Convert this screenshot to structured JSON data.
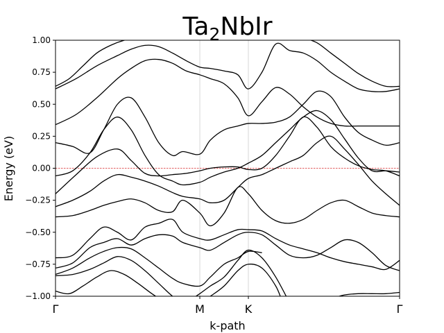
{
  "chart_data": {
    "type": "line",
    "title": "Ta",
    "title_subscript": "2",
    "title_rest": "NbIr",
    "xlabel": "k-path",
    "ylabel": "Energy (eV)",
    "ylim": [
      -1.0,
      1.0
    ],
    "yticks": [
      "1.00",
      "0.75",
      "0.50",
      "0.25",
      "0.00",
      "−0.25",
      "−0.50",
      "−0.75",
      "−1.00"
    ],
    "ytick_values": [
      1.0,
      0.75,
      0.5,
      0.25,
      0.0,
      -0.25,
      -0.5,
      -0.75,
      -1.0
    ],
    "xlim": [
      0,
      1
    ],
    "kpoints": [
      {
        "label": "Γ",
        "x": 0.0
      },
      {
        "label": "M",
        "x": 0.4194
      },
      {
        "label": "K",
        "x": 0.5605
      },
      {
        "label": "Γ",
        "x": 1.0
      }
    ],
    "fermi_level": 0.0,
    "fermi_color": "#d62728",
    "line_color": "#000000",
    "grid": "vertical lines at high-symmetry points",
    "series": [
      {
        "x": [
          0,
          0.06,
          0.12,
          0.18,
          0.22,
          0.26,
          0.3,
          0.34,
          0.38,
          0.4194,
          0.45,
          0.49,
          0.53,
          0.5605,
          0.6,
          0.64,
          0.68,
          0.72,
          0.76,
          0.8,
          0.84,
          0.88,
          0.92,
          0.96,
          1.0
        ],
        "y": [
          -0.2,
          -0.05,
          0.09,
          0.15,
          0.06,
          -0.04,
          -0.06,
          -0.05,
          -0.04,
          -0.02,
          0.0,
          0.01,
          0.01,
          -0.01,
          0.0,
          0.1,
          0.25,
          0.4,
          0.32,
          0.17,
          0.08,
          0.02,
          -0.01,
          -0.02,
          -0.06
        ]
      },
      {
        "x": [
          0,
          0.05,
          0.1,
          0.14,
          0.18,
          0.22,
          0.26,
          0.3,
          0.34,
          0.37,
          0.4194,
          0.45,
          0.49,
          0.53,
          0.5605,
          0.6,
          0.64,
          0.68,
          0.72,
          0.76,
          0.8,
          0.84,
          0.88,
          0.92,
          0.96,
          1.0
        ],
        "y": [
          -0.06,
          -0.02,
          0.12,
          0.3,
          0.4,
          0.3,
          0.1,
          -0.05,
          -0.1,
          -0.13,
          -0.11,
          -0.07,
          -0.03,
          0.0,
          0.04,
          0.1,
          0.2,
          0.3,
          0.4,
          0.45,
          0.38,
          0.23,
          0.08,
          -0.02,
          -0.02,
          -0.03
        ]
      },
      {
        "x": [
          0,
          0.05,
          0.1,
          0.14,
          0.18,
          0.22,
          0.26,
          0.3,
          0.34,
          0.37,
          0.4194,
          0.45,
          0.49,
          0.53,
          0.5605,
          0.6,
          0.64,
          0.68,
          0.72,
          0.76,
          0.8,
          0.84,
          0.88,
          0.92,
          0.96,
          1.0
        ],
        "y": [
          0.2,
          0.17,
          0.12,
          0.3,
          0.5,
          0.55,
          0.4,
          0.2,
          0.1,
          0.13,
          0.11,
          0.22,
          0.3,
          0.33,
          0.35,
          0.35,
          0.36,
          0.4,
          0.5,
          0.6,
          0.56,
          0.4,
          0.28,
          0.22,
          0.18,
          0.2
        ]
      },
      {
        "x": [
          0,
          0.06,
          0.12,
          0.18,
          0.22,
          0.26,
          0.3,
          0.34,
          0.38,
          0.4194,
          0.45,
          0.49,
          0.53,
          0.5605,
          0.6,
          0.64,
          0.68,
          0.72,
          0.76,
          0.8,
          0.84,
          0.88,
          0.92,
          0.96,
          1.0
        ],
        "y": [
          0.34,
          0.42,
          0.55,
          0.7,
          0.78,
          0.84,
          0.85,
          0.82,
          0.76,
          0.73,
          0.7,
          0.66,
          0.55,
          0.41,
          0.52,
          0.63,
          0.58,
          0.48,
          0.4,
          0.35,
          0.33,
          0.33,
          0.33,
          0.33,
          0.33
        ]
      },
      {
        "x": [
          0,
          0.06,
          0.12,
          0.18,
          0.22,
          0.26,
          0.3,
          0.34,
          0.38,
          0.4194,
          0.45,
          0.49,
          0.53,
          0.5605,
          0.6,
          0.64,
          0.68,
          0.72,
          0.76,
          0.8,
          0.84,
          0.88,
          0.92,
          0.96,
          1.0
        ],
        "y": [
          0.62,
          0.7,
          0.8,
          0.88,
          0.93,
          0.96,
          0.95,
          0.9,
          0.84,
          0.79,
          0.78,
          0.76,
          0.73,
          0.62,
          0.75,
          0.97,
          0.92,
          0.9,
          0.84,
          0.75,
          0.68,
          0.62,
          0.6,
          0.6,
          0.62
        ]
      },
      {
        "x": [
          0,
          0.04,
          0.08,
          0.12,
          0.16,
          0.2,
          0.24
        ],
        "y": [
          0.64,
          0.7,
          0.8,
          0.9,
          0.96,
          1.0,
          1.02
        ]
      },
      {
        "x": [
          0.72,
          0.76,
          0.8,
          0.84,
          0.88,
          0.92,
          0.96,
          1.0
        ],
        "y": [
          1.02,
          0.98,
          0.9,
          0.82,
          0.74,
          0.68,
          0.64,
          0.64
        ]
      },
      {
        "x": [
          0,
          0.05,
          0.1,
          0.14,
          0.18,
          0.22,
          0.26,
          0.3,
          0.34,
          0.37,
          0.4194,
          0.45,
          0.49,
          0.53,
          0.5605,
          0.6,
          0.64,
          0.68,
          0.72,
          0.76,
          0.8,
          0.84,
          0.88,
          0.92,
          0.96,
          1.0
        ],
        "y": [
          -0.3,
          -0.25,
          -0.18,
          -0.1,
          -0.05,
          -0.07,
          -0.1,
          -0.14,
          -0.19,
          -0.22,
          -0.24,
          -0.27,
          -0.25,
          -0.15,
          -0.08,
          -0.05,
          0.0,
          0.05,
          0.1,
          0.2,
          0.25,
          0.15,
          0.03,
          -0.1,
          -0.2,
          -0.29
        ]
      },
      {
        "x": [
          0,
          0.05,
          0.1,
          0.14,
          0.18,
          0.22,
          0.26,
          0.3,
          0.34,
          0.37,
          0.4194,
          0.45,
          0.49,
          0.53,
          0.5605,
          0.6,
          0.64,
          0.68,
          0.72,
          0.76,
          0.8,
          0.84,
          0.88,
          0.92,
          0.96,
          1.0
        ],
        "y": [
          -0.38,
          -0.37,
          -0.33,
          -0.29,
          -0.26,
          -0.24,
          -0.27,
          -0.33,
          -0.34,
          -0.25,
          -0.35,
          -0.45,
          -0.35,
          -0.15,
          -0.2,
          -0.33,
          -0.41,
          -0.43,
          -0.4,
          -0.33,
          -0.27,
          -0.25,
          -0.3,
          -0.35,
          -0.37,
          -0.38
        ]
      },
      {
        "x": [
          0,
          0.05,
          0.1,
          0.14,
          0.18,
          0.22,
          0.26,
          0.3,
          0.34,
          0.37,
          0.4194,
          0.45,
          0.49,
          0.53,
          0.5605,
          0.6,
          0.64,
          0.68,
          0.72,
          0.76,
          0.8,
          0.84,
          0.88,
          0.92,
          0.96,
          1.0
        ],
        "y": [
          -0.7,
          -0.68,
          -0.55,
          -0.46,
          -0.5,
          -0.56,
          -0.46,
          -0.43,
          -0.4,
          -0.5,
          -0.55,
          -0.56,
          -0.52,
          -0.48,
          -0.48,
          -0.49,
          -0.55,
          -0.6,
          -0.63,
          -0.66,
          -0.7,
          -0.73,
          -0.75,
          -0.77,
          -0.79,
          -0.72
        ]
      },
      {
        "x": [
          0,
          0.05,
          0.1,
          0.14,
          0.18,
          0.22,
          0.26,
          0.3,
          0.34,
          0.37,
          0.4194,
          0.45,
          0.49,
          0.53,
          0.5605,
          0.6,
          0.64,
          0.68,
          0.72,
          0.76,
          0.8,
          0.84,
          0.88,
          0.92,
          0.96,
          1.0
        ],
        "y": [
          -0.78,
          -0.74,
          -0.62,
          -0.58,
          -0.55,
          -0.6,
          -0.55,
          -0.52,
          -0.53,
          -0.58,
          -0.62,
          -0.64,
          -0.58,
          -0.52,
          -0.5,
          -0.52,
          -0.6,
          -0.68,
          -0.7,
          -0.68,
          -0.62,
          -0.56,
          -0.58,
          -0.66,
          -0.76,
          -0.8
        ]
      },
      {
        "x": [
          0,
          0.05,
          0.1,
          0.14,
          0.18,
          0.22,
          0.26,
          0.3,
          0.34,
          0.37,
          0.4194,
          0.45,
          0.49,
          0.53,
          0.5605,
          0.6
        ],
        "y": [
          -0.83,
          -0.78,
          -0.7,
          -0.65,
          -0.62,
          -0.63,
          -0.7,
          -0.78,
          -0.86,
          -0.9,
          -0.92,
          -0.85,
          -0.75,
          -0.7,
          -0.65,
          -0.66
        ]
      },
      {
        "x": [
          0,
          0.05,
          0.1,
          0.14,
          0.18,
          0.22,
          0.26,
          0.3,
          0.34,
          0.37
        ],
        "y": [
          -0.84,
          -0.83,
          -0.79,
          -0.74,
          -0.69,
          -0.72,
          -0.8,
          -0.9,
          -1.0,
          -1.05
        ]
      },
      {
        "x": [
          0,
          0.04,
          0.08,
          0.12,
          0.16,
          0.2,
          0.24,
          0.28,
          0.32
        ],
        "y": [
          -0.96,
          -0.98,
          -0.92,
          -0.85,
          -0.8,
          -0.83,
          -0.9,
          -0.98,
          -1.05
        ]
      },
      {
        "x": [
          0.38,
          0.4194,
          0.45,
          0.49,
          0.53,
          0.5605,
          0.6,
          0.64,
          0.68
        ],
        "y": [
          -1.05,
          -0.98,
          -0.92,
          -0.85,
          -0.72,
          -0.64,
          -0.7,
          -0.85,
          -1.05
        ]
      },
      {
        "x": [
          0.42,
          0.45,
          0.49,
          0.53,
          0.5605,
          0.6,
          0.64,
          0.66
        ],
        "y": [
          -1.05,
          -1.0,
          -0.92,
          -0.8,
          -0.75,
          -0.78,
          -0.92,
          -1.05
        ]
      },
      {
        "x": [
          0.8,
          0.84,
          0.88,
          0.92,
          0.96,
          1.0
        ],
        "y": [
          -1.02,
          -0.99,
          -0.98,
          -0.98,
          -0.98,
          -0.97
        ]
      }
    ]
  }
}
